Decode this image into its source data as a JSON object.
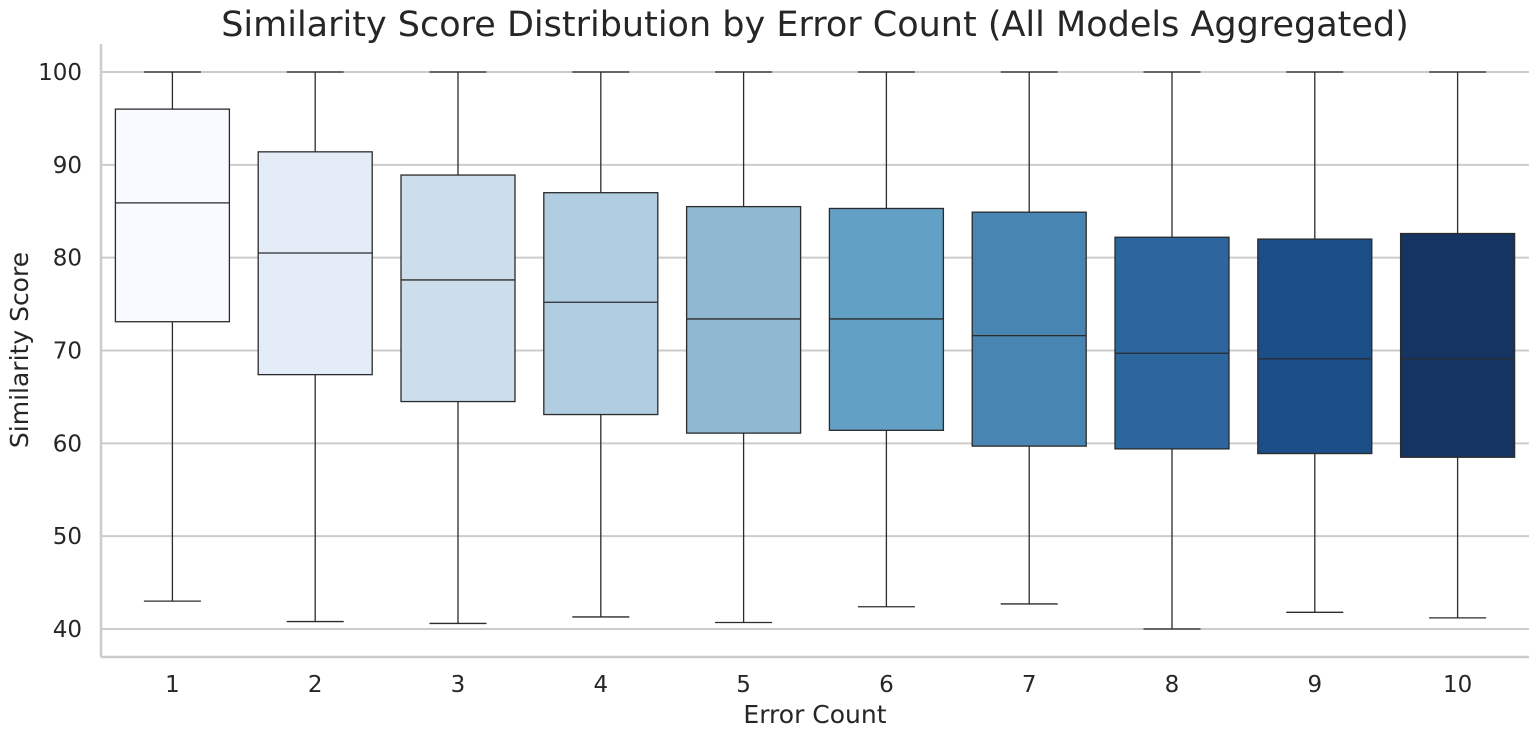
{
  "chart_data": {
    "type": "box",
    "title": "Similarity Score Distribution by Error Count (All Models Aggregated)",
    "xlabel": "Error Count",
    "ylabel": "Similarity Score",
    "ylim": [
      37,
      103
    ],
    "yticks": [
      40,
      50,
      60,
      70,
      80,
      90,
      100
    ],
    "grid": "horizontal",
    "categories": [
      "1",
      "2",
      "3",
      "4",
      "5",
      "6",
      "7",
      "8",
      "9",
      "10"
    ],
    "boxes": [
      {
        "category": "1",
        "whisker_low": 43.0,
        "q1": 73.1,
        "median": 85.9,
        "q3": 96.0,
        "whisker_high": 100,
        "color": "#f7fbff"
      },
      {
        "category": "2",
        "whisker_low": 40.8,
        "q1": 67.4,
        "median": 80.5,
        "q3": 91.4,
        "whisker_high": 100,
        "color": "#e3ecf7"
      },
      {
        "category": "3",
        "whisker_low": 40.6,
        "q1": 64.5,
        "median": 77.6,
        "q3": 88.9,
        "whisker_high": 100,
        "color": "#ccdeec"
      },
      {
        "category": "4",
        "whisker_low": 41.3,
        "q1": 63.1,
        "median": 75.2,
        "q3": 87.0,
        "whisker_high": 100,
        "color": "#b1cde1"
      },
      {
        "category": "5",
        "whisker_low": 40.7,
        "q1": 61.1,
        "median": 73.4,
        "q3": 85.5,
        "whisker_high": 100,
        "color": "#90b8d2"
      },
      {
        "category": "6",
        "whisker_low": 42.4,
        "q1": 61.4,
        "median": 73.4,
        "q3": 85.3,
        "whisker_high": 100,
        "color": "#62a0c5"
      },
      {
        "category": "7",
        "whisker_low": 42.7,
        "q1": 59.7,
        "median": 71.6,
        "q3": 84.9,
        "whisker_high": 100,
        "color": "#4885b3"
      },
      {
        "category": "8",
        "whisker_low": 40.0,
        "q1": 59.4,
        "median": 69.7,
        "q3": 82.2,
        "whisker_high": 100,
        "color": "#2d669d"
      },
      {
        "category": "9",
        "whisker_low": 41.8,
        "q1": 58.9,
        "median": 69.1,
        "q3": 82.0,
        "whisker_high": 100,
        "color": "#1b4d86"
      },
      {
        "category": "10",
        "whisker_low": 41.2,
        "q1": 58.5,
        "median": 69.1,
        "q3": 82.6,
        "whisker_high": 100,
        "color": "#163461"
      }
    ],
    "colors": {
      "grid": "#cccccc",
      "axis": "#cccccc",
      "line": "#2b2b2b",
      "text": "#262626"
    }
  }
}
